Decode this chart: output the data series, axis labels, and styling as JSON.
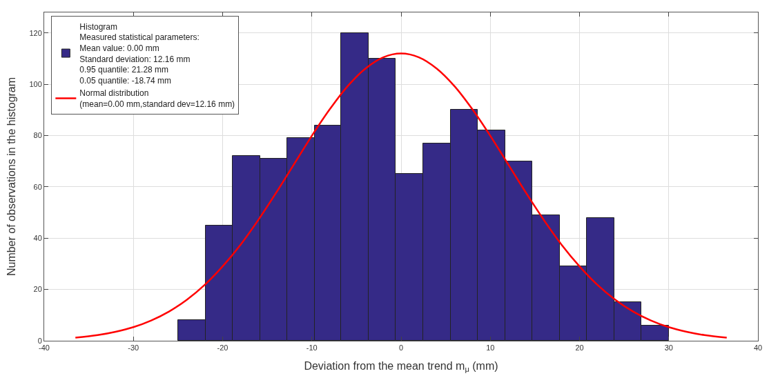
{
  "chart_data": {
    "type": "histogram",
    "xlabel": "Deviation from the mean trend m$_{μ}$ (mm)",
    "ylabel": "Number of observations in the histogram",
    "bins": [
      -25,
      -21.9,
      -18.9,
      -15.8,
      -12.8,
      -9.7,
      -6.7,
      -3.6,
      -0.6,
      2.5,
      5.6,
      8.6,
      11.7,
      14.7,
      17.8,
      20.8,
      23.9,
      26.9,
      30
    ],
    "series": [
      {
        "name": "Histogram\nMeasured statistical parameters:\nMean value: 0.00 mm\nStandard deviation: 12.16 mm\n0.95 quantile: 21.28 mm\n0.05 quantile: -18.74 mm",
        "color": "#352a87",
        "values": [
          8,
          45,
          72,
          71,
          79,
          84,
          120,
          110,
          65,
          77,
          90,
          82,
          70,
          49,
          29,
          48,
          15,
          6
        ]
      },
      {
        "type": "line",
        "name": "Normal distribution\n(mean=0.00 mm,standard dev=12.16 mm)",
        "color": "#ff0000",
        "x": [
          -36.5,
          -34,
          -32,
          -30,
          -28,
          -26,
          -24,
          -22,
          -20,
          -18,
          -16,
          -14,
          -12,
          -10,
          -8,
          -6,
          -4,
          -2,
          0,
          2,
          4,
          6,
          8,
          10,
          12,
          14,
          16,
          18,
          20,
          22,
          24,
          26,
          28,
          30,
          32,
          34,
          36.5
        ],
        "values": [
          1.2,
          2.2,
          3.5,
          5.3,
          7.9,
          11.4,
          16.0,
          21.8,
          29.0,
          37.4,
          47.1,
          57.7,
          68.8,
          79.9,
          90.2,
          99.2,
          106.1,
          110.5,
          112,
          110.5,
          106.1,
          99.2,
          90.2,
          79.9,
          68.8,
          57.7,
          47.1,
          37.4,
          29.0,
          21.8,
          16.0,
          11.4,
          7.9,
          5.3,
          3.5,
          2.2,
          1.2
        ]
      }
    ],
    "xlim": [
      -40,
      40
    ],
    "xticks": [
      -40,
      -30,
      -20,
      -10,
      0,
      10,
      20,
      30,
      40
    ],
    "ylim": [
      0,
      128
    ],
    "yticks": [
      0,
      20,
      40,
      60,
      80,
      100,
      120
    ],
    "grid": true,
    "legend": "top left"
  }
}
